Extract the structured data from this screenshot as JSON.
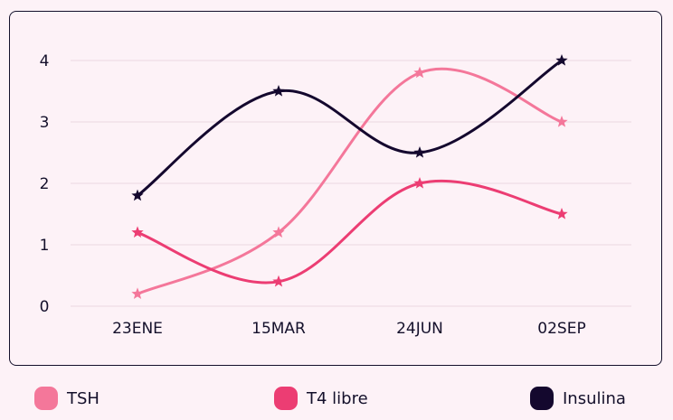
{
  "chart_data": {
    "type": "line",
    "categories": [
      "23ENE",
      "15MAR",
      "24JUN",
      "02SEP"
    ],
    "ylim": [
      0,
      4
    ],
    "yticks": [
      "0",
      "1",
      "2",
      "3",
      "4"
    ],
    "grid": true,
    "legend_position": "bottom",
    "series": [
      {
        "name": "TSH",
        "values": [
          0.2,
          1.2,
          3.8,
          3.0
        ],
        "color": "#f4779a"
      },
      {
        "name": "T4 libre",
        "values": [
          1.2,
          0.4,
          2.0,
          1.5
        ],
        "color": "#ec3d73"
      },
      {
        "name": "Insulina",
        "values": [
          1.8,
          3.5,
          2.5,
          4.0
        ],
        "color": "#14082e"
      }
    ]
  },
  "colors": {
    "background": "#fdf2f7",
    "border": "#14102b",
    "grid": "#f0dde5",
    "text": "#14102b"
  },
  "marker_icon": "star-icon"
}
